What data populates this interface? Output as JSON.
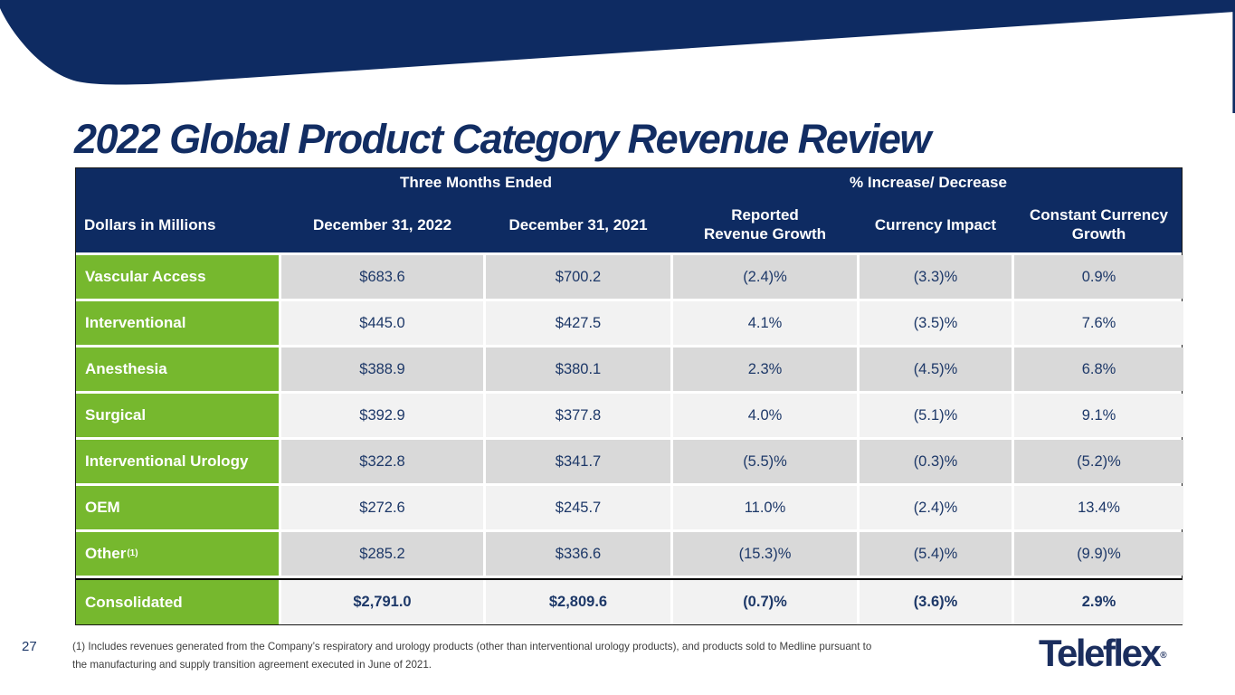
{
  "title": "2022 Global Product Category Revenue Review",
  "table": {
    "group_headers": {
      "three_months": "Three Months Ended",
      "increase_decrease": "% Increase/ Decrease"
    },
    "columns": {
      "c0": "Dollars in Millions",
      "c1": "December 31, 2022",
      "c2": "December 31, 2021",
      "c3": "Reported\nRevenue Growth",
      "c4": "Currency Impact",
      "c5": "Constant Currency\nGrowth"
    },
    "rows": [
      {
        "label": "Vascular Access",
        "values": [
          "$683.6",
          "$700.2",
          "(2.4)%",
          "(3.3)%",
          "0.9%"
        ]
      },
      {
        "label": "Interventional",
        "values": [
          "$445.0",
          "$427.5",
          "4.1%",
          "(3.5)%",
          "7.6%"
        ]
      },
      {
        "label": "Anesthesia",
        "values": [
          "$388.9",
          "$380.1",
          "2.3%",
          "(4.5)%",
          "6.8%"
        ]
      },
      {
        "label": "Surgical",
        "values": [
          "$392.9",
          "$377.8",
          "4.0%",
          "(5.1)%",
          "9.1%"
        ]
      },
      {
        "label": "Interventional Urology",
        "values": [
          "$322.8",
          "$341.7",
          "(5.5)%",
          "(0.3)%",
          "(5.2)%"
        ]
      },
      {
        "label": "OEM",
        "values": [
          "$272.6",
          "$245.7",
          "11.0%",
          "(2.4)%",
          "13.4%"
        ]
      },
      {
        "label": "Other",
        "superscript": "(1)",
        "values": [
          "$285.2",
          "$336.6",
          "(15.3)%",
          "(5.4)%",
          "(9.9)%"
        ]
      }
    ],
    "total_row": {
      "label": "Consolidated",
      "values": [
        "$2,791.0",
        "$2,809.6",
        "(0.7)%",
        "(3.6)%",
        "2.9%"
      ]
    }
  },
  "footer": {
    "page_number": "27",
    "footnote_line1": "(1) Includes revenues generated from the Company’s respiratory and urology products (other than interventional urology products), and products sold to Medline pursuant to",
    "footnote_line2": "the manufacturing and supply transition agreement executed in June of 2021.",
    "logo_text": "Teleflex",
    "logo_reg": "®"
  },
  "colors": {
    "navy": "#0e2b62",
    "title_navy": "#122d63",
    "green": "#76b82e",
    "row_gray": "#d9d9d9",
    "row_light": "#f2f2f2",
    "value_text": "#1d3868"
  }
}
